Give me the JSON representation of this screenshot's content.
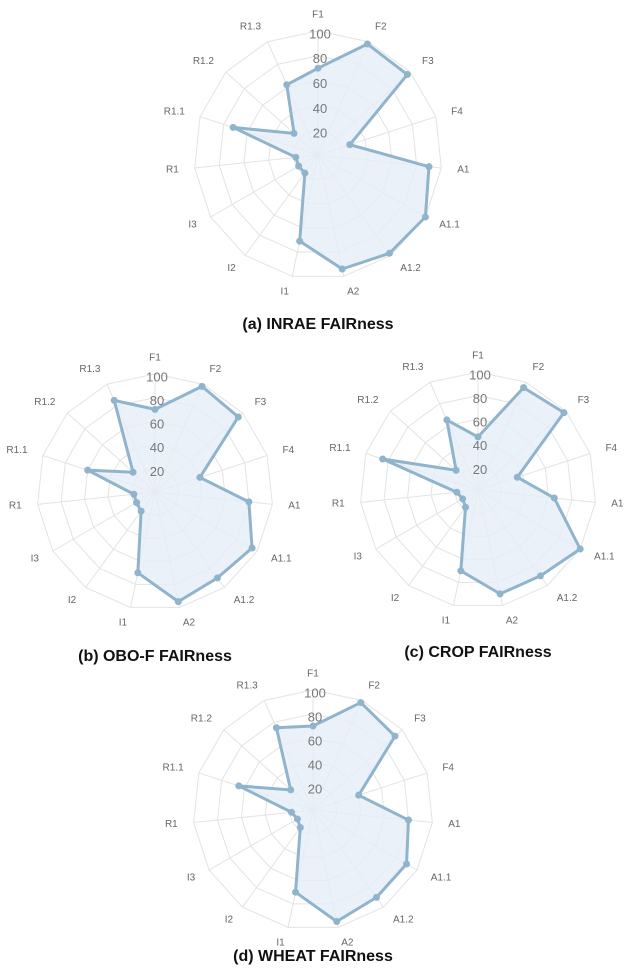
{
  "chart_data": [
    {
      "type": "radar",
      "title": "(a) INRAE FAIRness",
      "categories": [
        "F1",
        "F2",
        "F3",
        "F4",
        "A1",
        "A1.1",
        "A1.2",
        "A2",
        "I1",
        "I2",
        "I3",
        "R1",
        "R1.1",
        "R1.2",
        "R1.3"
      ],
      "values": [
        70,
        98,
        97,
        27,
        90,
        100,
        98,
        94,
        71,
        18,
        18,
        18,
        72,
        26,
        62
      ],
      "color": "#8fb4cc",
      "fill": "#e6eef6",
      "rlim": [
        0,
        100
      ],
      "rticks": [
        20,
        40,
        60,
        80,
        100
      ],
      "grid": true
    },
    {
      "type": "radar",
      "title": "(b) OBO-F FAIRness",
      "categories": [
        "F1",
        "F2",
        "F3",
        "F4",
        "A1",
        "A1.1",
        "A1.2",
        "A2",
        "I1",
        "I2",
        "I3",
        "R1",
        "R1.1",
        "R1.2",
        "R1.3"
      ],
      "values": [
        70,
        98,
        95,
        40,
        80,
        95,
        90,
        95,
        70,
        20,
        18,
        18,
        60,
        25,
        85
      ],
      "color": "#8fb4cc",
      "fill": "#e6eef6",
      "rlim": [
        0,
        100
      ],
      "rticks": [
        20,
        40,
        60,
        80,
        100
      ],
      "grid": true
    },
    {
      "type": "radar",
      "title": "(c) CROP FAIRness",
      "categories": [
        "F1",
        "F2",
        "F3",
        "F4",
        "A1",
        "A1.1",
        "A1.2",
        "A2",
        "I1",
        "I2",
        "I3",
        "R1",
        "R1.1",
        "R1.2",
        "R1.3"
      ],
      "values": [
        45,
        95,
        98,
        35,
        65,
        100,
        90,
        90,
        70,
        18,
        15,
        18,
        85,
        25,
        65
      ],
      "color": "#8fb4cc",
      "fill": "#e6eef6",
      "rlim": [
        0,
        100
      ],
      "rticks": [
        20,
        40,
        60,
        80,
        100
      ],
      "grid": true
    },
    {
      "type": "radar",
      "title": "(d) WHEAT FAIRness",
      "categories": [
        "F1",
        "F2",
        "F3",
        "F4",
        "A1",
        "A1.1",
        "A1.2",
        "A2",
        "I1",
        "I2",
        "I3",
        "R1",
        "R1.1",
        "R1.2",
        "R1.3"
      ],
      "values": [
        70,
        98,
        92,
        40,
        80,
        90,
        90,
        95,
        70,
        18,
        15,
        18,
        65,
        25,
        75
      ],
      "color": "#8fb4cc",
      "fill": "#e6eef6",
      "rlim": [
        0,
        100
      ],
      "rticks": [
        20,
        40,
        60,
        80,
        100
      ],
      "grid": true
    }
  ]
}
